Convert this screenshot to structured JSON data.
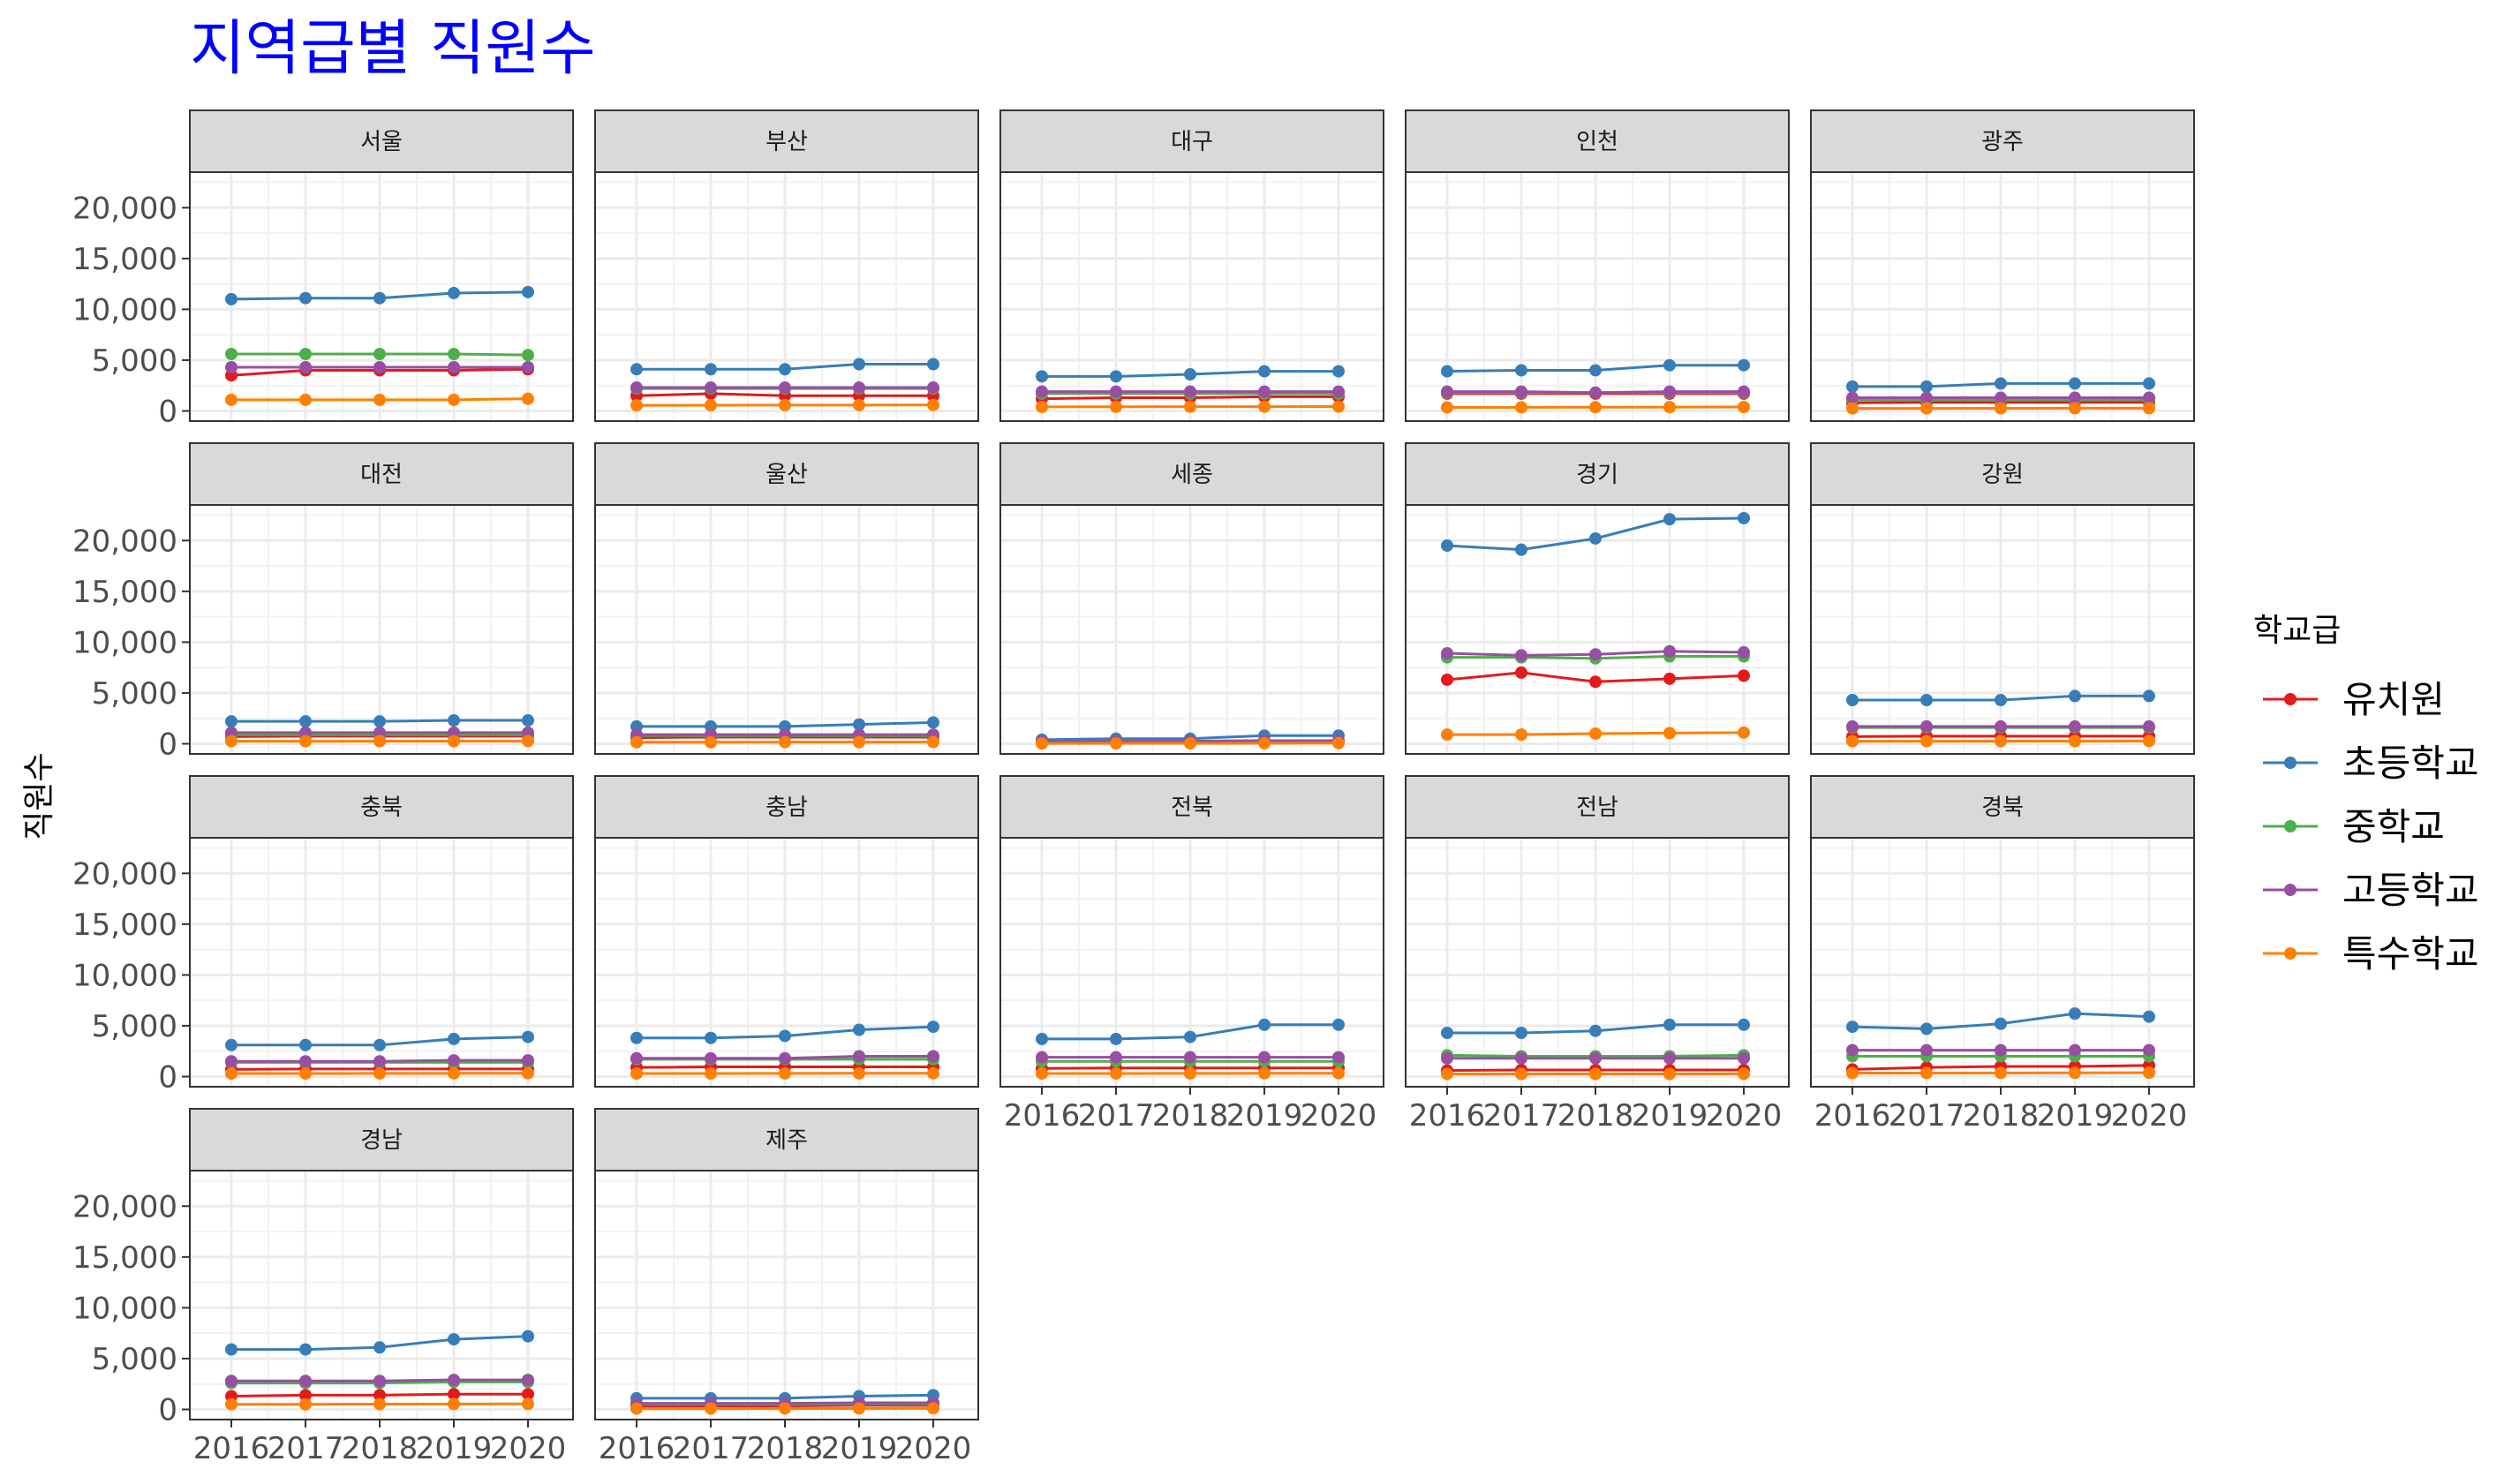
{
  "chart_data": {
    "type": "line",
    "title": "지역급별 직원수",
    "ylabel": "직원수",
    "xlabel": "",
    "x": [
      2016,
      2017,
      2018,
      2019,
      2020
    ],
    "x_tick_labels": [
      "2016",
      "2017",
      "2018",
      "2019",
      "2020"
    ],
    "ylim": [
      -1000,
      23500
    ],
    "y_ticks": [
      0,
      5000,
      10000,
      15000,
      20000
    ],
    "y_tick_labels": [
      "0",
      "5,000",
      "10,000",
      "15,000",
      "20,000"
    ],
    "grid": true,
    "legend": {
      "title": "학교급",
      "position": "right",
      "entries": [
        "유치원",
        "초등학교",
        "중학교",
        "고등학교",
        "특수학교"
      ]
    },
    "series_colors": {
      "유치원": "#E41A1C",
      "초등학교": "#377EB8",
      "중학교": "#4DAF4A",
      "고등학교": "#984EA3",
      "특수학교": "#FF7F00"
    },
    "facets": [
      {
        "region": "서울",
        "series": [
          {
            "name": "유치원",
            "values": [
              3500,
              4000,
              4000,
              4000,
              4100
            ]
          },
          {
            "name": "초등학교",
            "values": [
              11000,
              11100,
              11100,
              11600,
              11700
            ]
          },
          {
            "name": "중학교",
            "values": [
              5600,
              5600,
              5600,
              5600,
              5500
            ]
          },
          {
            "name": "고등학교",
            "values": [
              4300,
              4300,
              4300,
              4300,
              4300
            ]
          },
          {
            "name": "특수학교",
            "values": [
              1100,
              1100,
              1100,
              1100,
              1200
            ]
          }
        ]
      },
      {
        "region": "부산",
        "series": [
          {
            "name": "유치원",
            "values": [
              1500,
              1700,
              1500,
              1500,
              1500
            ]
          },
          {
            "name": "초등학교",
            "values": [
              4100,
              4100,
              4100,
              4600,
              4600
            ]
          },
          {
            "name": "중학교",
            "values": [
              2200,
              2200,
              2200,
              2200,
              2200
            ]
          },
          {
            "name": "고등학교",
            "values": [
              2300,
              2300,
              2300,
              2300,
              2300
            ]
          },
          {
            "name": "특수학교",
            "values": [
              550,
              560,
              570,
              580,
              590
            ]
          }
        ]
      },
      {
        "region": "대구",
        "series": [
          {
            "name": "유치원",
            "values": [
              1200,
              1300,
              1300,
              1400,
              1400
            ]
          },
          {
            "name": "초등학교",
            "values": [
              3400,
              3400,
              3600,
              3900,
              3900
            ]
          },
          {
            "name": "중학교",
            "values": [
              1700,
              1700,
              1700,
              1700,
              1700
            ]
          },
          {
            "name": "고등학교",
            "values": [
              1900,
              1900,
              1900,
              1900,
              1900
            ]
          },
          {
            "name": "특수학교",
            "values": [
              400,
              410,
              420,
              420,
              430
            ]
          }
        ]
      },
      {
        "region": "인천",
        "series": [
          {
            "name": "유치원",
            "values": [
              1700,
              1700,
              1700,
              1700,
              1700
            ]
          },
          {
            "name": "초등학교",
            "values": [
              3900,
              4000,
              4000,
              4500,
              4500
            ]
          },
          {
            "name": "중학교",
            "values": [
              1800,
              1800,
              1800,
              1800,
              1800
            ]
          },
          {
            "name": "고등학교",
            "values": [
              1900,
              1900,
              1800,
              1900,
              1900
            ]
          },
          {
            "name": "특수학교",
            "values": [
              350,
              360,
              370,
              380,
              390
            ]
          }
        ]
      },
      {
        "region": "광주",
        "series": [
          {
            "name": "유치원",
            "values": [
              800,
              850,
              850,
              850,
              850
            ]
          },
          {
            "name": "초등학교",
            "values": [
              2400,
              2400,
              2700,
              2700,
              2700
            ]
          },
          {
            "name": "중학교",
            "values": [
              1100,
              1100,
              1100,
              1100,
              1100
            ]
          },
          {
            "name": "고등학교",
            "values": [
              1300,
              1300,
              1300,
              1300,
              1300
            ]
          },
          {
            "name": "특수학교",
            "values": [
              250,
              250,
              260,
              270,
              270
            ]
          }
        ]
      },
      {
        "region": "대전",
        "series": [
          {
            "name": "유치원",
            "values": [
              700,
              750,
              750,
              750,
              750
            ]
          },
          {
            "name": "초등학교",
            "values": [
              2200,
              2200,
              2200,
              2300,
              2300
            ]
          },
          {
            "name": "중학교",
            "values": [
              900,
              900,
              900,
              900,
              900
            ]
          },
          {
            "name": "고등학교",
            "values": [
              1100,
              1100,
              1100,
              1100,
              1100
            ]
          },
          {
            "name": "특수학교",
            "values": [
              250,
              250,
              260,
              260,
              270
            ]
          }
        ]
      },
      {
        "region": "울산",
        "series": [
          {
            "name": "유치원",
            "values": [
              600,
              650,
              650,
              650,
              650
            ]
          },
          {
            "name": "초등학교",
            "values": [
              1700,
              1700,
              1700,
              1900,
              2100
            ]
          },
          {
            "name": "중학교",
            "values": [
              800,
              800,
              800,
              800,
              800
            ]
          },
          {
            "name": "고등학교",
            "values": [
              900,
              900,
              900,
              900,
              900
            ]
          },
          {
            "name": "특수학교",
            "values": [
              150,
              150,
              160,
              160,
              170
            ]
          }
        ]
      },
      {
        "region": "세종",
        "series": [
          {
            "name": "유치원",
            "values": [
              150,
              200,
              200,
              250,
              250
            ]
          },
          {
            "name": "초등학교",
            "values": [
              400,
              500,
              500,
              800,
              800
            ]
          },
          {
            "name": "중학교",
            "values": [
              200,
              250,
              250,
              300,
              300
            ]
          },
          {
            "name": "고등학교",
            "values": [
              200,
              250,
              250,
              300,
              300
            ]
          },
          {
            "name": "특수학교",
            "values": [
              30,
              40,
              40,
              50,
              60
            ]
          }
        ]
      },
      {
        "region": "경기",
        "series": [
          {
            "name": "유치원",
            "values": [
              6300,
              7000,
              6100,
              6400,
              6700
            ]
          },
          {
            "name": "초등학교",
            "values": [
              19500,
              19100,
              20200,
              22100,
              22200
            ]
          },
          {
            "name": "중학교",
            "values": [
              8500,
              8500,
              8400,
              8600,
              8600
            ]
          },
          {
            "name": "고등학교",
            "values": [
              8900,
              8700,
              8800,
              9100,
              9000
            ]
          },
          {
            "name": "특수학교",
            "values": [
              900,
              900,
              1000,
              1050,
              1100
            ]
          }
        ]
      },
      {
        "region": "강원",
        "series": [
          {
            "name": "유치원",
            "values": [
              700,
              750,
              750,
              750,
              750
            ]
          },
          {
            "name": "초등학교",
            "values": [
              4300,
              4300,
              4300,
              4700,
              4700
            ]
          },
          {
            "name": "중학교",
            "values": [
              1600,
              1600,
              1600,
              1600,
              1600
            ]
          },
          {
            "name": "고등학교",
            "values": [
              1700,
              1700,
              1700,
              1700,
              1700
            ]
          },
          {
            "name": "특수학교",
            "values": [
              250,
              250,
              260,
              260,
              270
            ]
          }
        ]
      },
      {
        "region": "충북",
        "series": [
          {
            "name": "유치원",
            "values": [
              700,
              750,
              750,
              750,
              750
            ]
          },
          {
            "name": "초등학교",
            "values": [
              3100,
              3100,
              3100,
              3700,
              3900
            ]
          },
          {
            "name": "중학교",
            "values": [
              1400,
              1400,
              1400,
              1400,
              1400
            ]
          },
          {
            "name": "고등학교",
            "values": [
              1500,
              1500,
              1500,
              1600,
              1600
            ]
          },
          {
            "name": "특수학교",
            "values": [
              300,
              300,
              310,
              320,
              330
            ]
          }
        ]
      },
      {
        "region": "충남",
        "series": [
          {
            "name": "유치원",
            "values": [
              900,
              950,
              950,
              950,
              950
            ]
          },
          {
            "name": "초등학교",
            "values": [
              3800,
              3800,
              4000,
              4600,
              4900
            ]
          },
          {
            "name": "중학교",
            "values": [
              1700,
              1700,
              1700,
              1700,
              1700
            ]
          },
          {
            "name": "고등학교",
            "values": [
              1800,
              1800,
              1800,
              2000,
              2000
            ]
          },
          {
            "name": "특수학교",
            "values": [
              300,
              300,
              310,
              320,
              330
            ]
          }
        ]
      },
      {
        "region": "전북",
        "series": [
          {
            "name": "유치원",
            "values": [
              800,
              850,
              850,
              850,
              850
            ]
          },
          {
            "name": "초등학교",
            "values": [
              3700,
              3700,
              3900,
              5100,
              5100
            ]
          },
          {
            "name": "중학교",
            "values": [
              1500,
              1500,
              1500,
              1500,
              1500
            ]
          },
          {
            "name": "고등학교",
            "values": [
              1900,
              1900,
              1900,
              1900,
              1900
            ]
          },
          {
            "name": "특수학교",
            "values": [
              300,
              300,
              310,
              320,
              330
            ]
          }
        ]
      },
      {
        "region": "전남",
        "series": [
          {
            "name": "유치원",
            "values": [
              600,
              650,
              650,
              650,
              650
            ]
          },
          {
            "name": "초등학교",
            "values": [
              4300,
              4300,
              4500,
              5100,
              5100
            ]
          },
          {
            "name": "중학교",
            "values": [
              2100,
              2000,
              2000,
              2000,
              2100
            ]
          },
          {
            "name": "고등학교",
            "values": [
              1800,
              1800,
              1800,
              1800,
              1800
            ]
          },
          {
            "name": "특수학교",
            "values": [
              250,
              250,
              260,
              260,
              270
            ]
          }
        ]
      },
      {
        "region": "경북",
        "series": [
          {
            "name": "유치원",
            "values": [
              700,
              900,
              1000,
              1000,
              1100
            ]
          },
          {
            "name": "초등학교",
            "values": [
              4900,
              4700,
              5200,
              6200,
              5900
            ]
          },
          {
            "name": "중학교",
            "values": [
              2000,
              2000,
              2000,
              2000,
              2000
            ]
          },
          {
            "name": "고등학교",
            "values": [
              2600,
              2600,
              2600,
              2600,
              2600
            ]
          },
          {
            "name": "특수학교",
            "values": [
              350,
              350,
              360,
              370,
              380
            ]
          }
        ]
      },
      {
        "region": "경남",
        "series": [
          {
            "name": "유치원",
            "values": [
              1300,
              1400,
              1400,
              1500,
              1500
            ]
          },
          {
            "name": "초등학교",
            "values": [
              5900,
              5900,
              6100,
              6900,
              7200
            ]
          },
          {
            "name": "중학교",
            "values": [
              2600,
              2600,
              2600,
              2700,
              2700
            ]
          },
          {
            "name": "고등학교",
            "values": [
              2800,
              2800,
              2800,
              2900,
              2900
            ]
          },
          {
            "name": "특수학교",
            "values": [
              500,
              500,
              520,
              530,
              540
            ]
          }
        ]
      },
      {
        "region": "제주",
        "series": [
          {
            "name": "유치원",
            "values": [
              300,
              350,
              350,
              400,
              400
            ]
          },
          {
            "name": "초등학교",
            "values": [
              1100,
              1100,
              1100,
              1300,
              1400
            ]
          },
          {
            "name": "중학교",
            "values": [
              500,
              500,
              500,
              550,
              550
            ]
          },
          {
            "name": "고등학교",
            "values": [
              600,
              600,
              600,
              650,
              650
            ]
          },
          {
            "name": "특수학교",
            "values": [
              80,
              80,
              90,
              90,
              100
            ]
          }
        ]
      }
    ]
  }
}
